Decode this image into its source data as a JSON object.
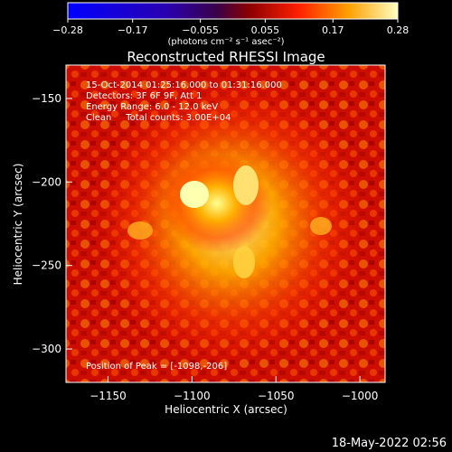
{
  "colorbar": {
    "tick_labels": [
      "-0.28",
      "-0.17",
      "-0.055",
      "0.055",
      "0.17",
      "0.28"
    ],
    "unit_label": "(photons cm⁻² s⁻¹ asec⁻²)",
    "range": [
      -0.28,
      0.28
    ]
  },
  "image": {
    "title": "Reconstructed RHESSI Image",
    "info_lines": [
      "15-Oct-2014 01:25:16.000 to 01:31:16.000",
      "Detectors: 3F 6F 9F, Att 1",
      "Energy Range: 6.0 - 12.0 keV",
      "Clean     Total counts: 3.00E+04"
    ],
    "peak_label": "Position of Peak = [-1098,-206]",
    "xlabel": "Heliocentric X (arcsec)",
    "ylabel": "Heliocentric Y (arcsec)",
    "x_ticks": [
      "-1150",
      "-1100",
      "-1050",
      "-1000"
    ],
    "y_ticks": [
      "-150",
      "-200",
      "-250",
      "-300"
    ]
  },
  "footer": {
    "timestamp": "18-May-2022 02:56"
  },
  "colors": {
    "background": "#000000",
    "text": "#ffffff"
  }
}
